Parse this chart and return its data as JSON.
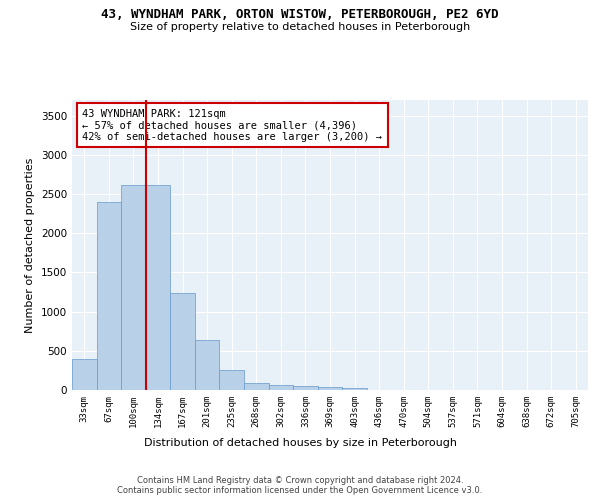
{
  "title": "43, WYNDHAM PARK, ORTON WISTOW, PETERBOROUGH, PE2 6YD",
  "subtitle": "Size of property relative to detached houses in Peterborough",
  "xlabel": "Distribution of detached houses by size in Peterborough",
  "ylabel": "Number of detached properties",
  "categories": [
    "33sqm",
    "67sqm",
    "100sqm",
    "134sqm",
    "167sqm",
    "201sqm",
    "235sqm",
    "268sqm",
    "302sqm",
    "336sqm",
    "369sqm",
    "403sqm",
    "436sqm",
    "470sqm",
    "504sqm",
    "537sqm",
    "571sqm",
    "604sqm",
    "638sqm",
    "672sqm",
    "705sqm"
  ],
  "values": [
    390,
    2400,
    2610,
    2610,
    1240,
    640,
    255,
    90,
    60,
    55,
    40,
    30,
    0,
    0,
    0,
    0,
    0,
    0,
    0,
    0,
    0
  ],
  "bar_color": "#b8d0e8",
  "bar_edge_color": "#6699cc",
  "vline_color": "#cc0000",
  "annotation_text": "43 WYNDHAM PARK: 121sqm\n← 57% of detached houses are smaller (4,396)\n42% of semi-detached houses are larger (3,200) →",
  "annotation_box_color": "#cc0000",
  "ylim": [
    0,
    3700
  ],
  "yticks": [
    0,
    500,
    1000,
    1500,
    2000,
    2500,
    3000,
    3500
  ],
  "background_color": "#e8f0f8",
  "grid_color": "#ffffff",
  "footer_line1": "Contains HM Land Registry data © Crown copyright and database right 2024.",
  "footer_line2": "Contains public sector information licensed under the Open Government Licence v3.0."
}
